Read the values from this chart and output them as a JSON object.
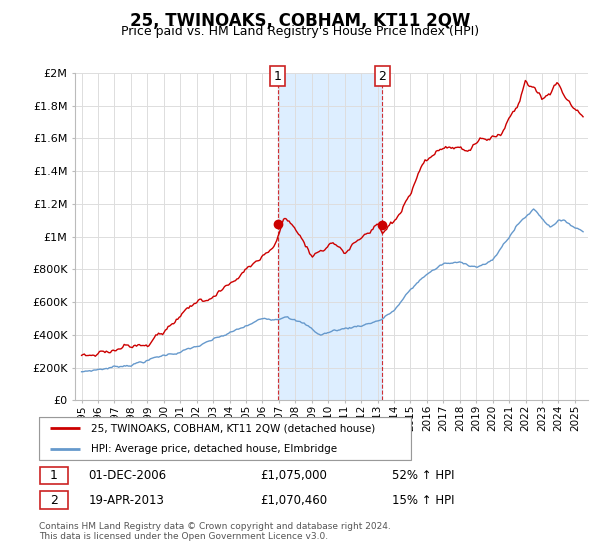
{
  "title": "25, TWINOAKS, COBHAM, KT11 2QW",
  "subtitle": "Price paid vs. HM Land Registry's House Price Index (HPI)",
  "ylabel_ticks": [
    "£0",
    "£200K",
    "£400K",
    "£600K",
    "£800K",
    "£1M",
    "£1.2M",
    "£1.4M",
    "£1.6M",
    "£1.8M",
    "£2M"
  ],
  "ytick_values": [
    0,
    200000,
    400000,
    600000,
    800000,
    1000000,
    1200000,
    1400000,
    1600000,
    1800000,
    2000000
  ],
  "ylim": [
    0,
    2000000
  ],
  "legend_line1": "25, TWINOAKS, COBHAM, KT11 2QW (detached house)",
  "legend_line2": "HPI: Average price, detached house, Elmbridge",
  "purchase1_date": "01-DEC-2006",
  "purchase1_price": "£1,075,000",
  "purchase1_hpi": "52% ↑ HPI",
  "purchase1_year": 2006.92,
  "purchase1_value": 1075000,
  "purchase2_date": "19-APR-2013",
  "purchase2_price": "£1,070,460",
  "purchase2_hpi": "15% ↑ HPI",
  "purchase2_year": 2013.29,
  "purchase2_value": 1070460,
  "red_color": "#cc0000",
  "blue_color": "#6699cc",
  "shade_color": "#ddeeff",
  "grid_color": "#dddddd",
  "footer_text": "Contains HM Land Registry data © Crown copyright and database right 2024.\nThis data is licensed under the Open Government Licence v3.0.",
  "background_color": "#ffffff"
}
